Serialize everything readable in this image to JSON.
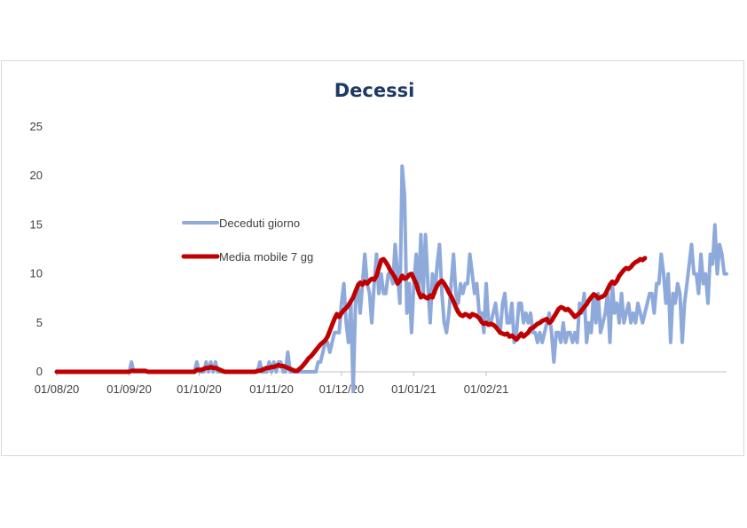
{
  "chart_data": {
    "type": "line",
    "title": "Decessi",
    "xlabel": "",
    "ylabel": "",
    "ylim": [
      0,
      25
    ],
    "yticks": [
      "0",
      "5",
      "10",
      "15",
      "20",
      "25"
    ],
    "xticks": [
      "01/08/20",
      "01/09/20",
      "01/10/20",
      "01/11/20",
      "01/12/20",
      "01/01/21",
      "01/02/21"
    ],
    "grid": false,
    "legend": "center-left",
    "series": [
      {
        "name": "Deceduti giorno",
        "color": "#8eaadb",
        "values": [
          0,
          0,
          0,
          0,
          0,
          0,
          0,
          0,
          0,
          0,
          0,
          0,
          0,
          0,
          0,
          0,
          0,
          0,
          0,
          0,
          0,
          0,
          0,
          0,
          0,
          0,
          0,
          0,
          0,
          0,
          0,
          0,
          1,
          0,
          0,
          0,
          0,
          0,
          0,
          0,
          0,
          0,
          0,
          0,
          0,
          0,
          0,
          0,
          0,
          0,
          0,
          0,
          0,
          0,
          0,
          0,
          0,
          0,
          0,
          0,
          1,
          0,
          0,
          0,
          1,
          0,
          1,
          0,
          1,
          0,
          0,
          0,
          0,
          0,
          0,
          0,
          0,
          0,
          0,
          0,
          0,
          0,
          0,
          0,
          0,
          0,
          0,
          1,
          0,
          0,
          0,
          1,
          0,
          1,
          0,
          1,
          1,
          0,
          0,
          2,
          0,
          0,
          0,
          0,
          0,
          0,
          0,
          0,
          0,
          0,
          0,
          0,
          1,
          1,
          2,
          3,
          3,
          2,
          3,
          4,
          4,
          4,
          7,
          9,
          5,
          3,
          7,
          -2,
          7,
          9,
          6,
          9,
          12,
          9,
          8,
          5,
          9,
          12,
          8,
          10,
          8,
          8,
          10,
          10,
          9,
          13,
          10,
          7,
          21,
          18,
          6,
          9,
          4,
          9,
          12,
          8,
          14,
          8,
          14,
          9,
          5,
          10,
          8,
          11,
          13,
          8,
          5,
          4,
          6,
          9,
          12,
          8,
          7,
          9,
          8,
          9,
          9,
          12,
          10,
          8,
          9,
          6,
          6,
          4,
          9,
          5,
          5,
          6,
          7,
          5,
          4,
          7,
          8,
          5,
          5,
          7,
          3,
          4,
          7,
          7,
          5,
          6,
          5,
          6,
          4,
          4,
          3,
          4,
          3,
          4,
          5,
          6,
          4,
          1,
          4,
          4,
          3,
          5,
          3,
          4,
          4,
          3,
          4,
          3,
          7,
          6,
          8,
          3,
          5,
          4,
          8,
          5,
          8,
          4,
          5,
          6,
          8,
          3,
          9,
          6,
          7,
          5,
          8,
          5,
          6,
          7,
          5,
          6,
          5,
          7,
          6,
          5,
          6,
          7,
          8,
          8,
          6,
          9,
          9,
          12,
          10,
          7,
          10,
          3,
          8,
          7,
          9,
          8,
          3,
          7,
          9,
          11,
          13,
          10,
          10,
          8,
          12,
          9,
          10,
          7,
          12,
          11,
          15,
          10,
          13,
          12,
          10,
          10
        ]
      },
      {
        "name": "Media mobile 7 gg",
        "color": "#c00000",
        "values": [
          0,
          0,
          0,
          0,
          0,
          0,
          0,
          0,
          0,
          0,
          0,
          0,
          0,
          0,
          0,
          0,
          0,
          0,
          0,
          0,
          0,
          0,
          0,
          0,
          0,
          0,
          0,
          0,
          0,
          0,
          0,
          0,
          0.1,
          0.1,
          0.1,
          0.1,
          0.1,
          0.1,
          0.1,
          0,
          0,
          0,
          0,
          0,
          0,
          0,
          0,
          0,
          0,
          0,
          0,
          0,
          0,
          0,
          0,
          0,
          0,
          0,
          0,
          0,
          0.2,
          0.2,
          0.2,
          0.3,
          0.4,
          0.4,
          0.5,
          0.4,
          0.4,
          0.3,
          0.2,
          0.1,
          0,
          0,
          0,
          0,
          0,
          0,
          0,
          0,
          0,
          0,
          0,
          0,
          0,
          0,
          0.1,
          0.1,
          0.2,
          0.3,
          0.4,
          0.4,
          0.5,
          0.5,
          0.6,
          0.7,
          0.6,
          0.6,
          0.5,
          0.4,
          0.3,
          0.2,
          0.1,
          0.1,
          0.3,
          0.5,
          0.8,
          1.1,
          1.4,
          1.6,
          1.9,
          2.2,
          2.5,
          2.8,
          3.0,
          3.2,
          3.6,
          4.2,
          4.8,
          5.4,
          5.9,
          5.6,
          6.0,
          6.3,
          6.5,
          6.8,
          7.2,
          7.6,
          8.2,
          8.8,
          9.1,
          8.9,
          9.2,
          9.0,
          9.3,
          9.5,
          9.4,
          9.8,
          10.6,
          11.4,
          11.5,
          11.2,
          10.8,
          10.3,
          10.0,
          9.6,
          9.0,
          9.3,
          9.8,
          9.5,
          9.6,
          9.9,
          10.0,
          9.5,
          9.0,
          8.2,
          7.6,
          7.8,
          7.6,
          7.5,
          7.8,
          7.6,
          8.3,
          8.8,
          9.1,
          9.3,
          9.0,
          8.6,
          8.1,
          7.7,
          7.2,
          6.6,
          6.1,
          5.8,
          5.7,
          5.9,
          5.8,
          5.6,
          5.9,
          5.8,
          5.7,
          5.5,
          5.1,
          4.9,
          5.0,
          4.8,
          4.9,
          4.8,
          4.6,
          4.3,
          4.0,
          3.9,
          3.8,
          3.9,
          3.6,
          3.7,
          3.5,
          3.3,
          3.6,
          3.9,
          3.6,
          3.8,
          4.0,
          4.4,
          4.5,
          4.7,
          4.9,
          5.0,
          5.2,
          5.3,
          5.4,
          5.0,
          5.2,
          5.6,
          6.0,
          6.4,
          6.6,
          6.5,
          6.3,
          6.4,
          6.2,
          5.9,
          5.6,
          5.8,
          6.0,
          6.3,
          6.6,
          6.9,
          7.3,
          7.6,
          7.9,
          7.8,
          7.5,
          7.6,
          7.7,
          7.9,
          8.4,
          8.9,
          9.2,
          9.0,
          9.3,
          9.8,
          10.1,
          10.4,
          10.6,
          10.5,
          10.7,
          11.0,
          11.2,
          11.3,
          11.5,
          11.4,
          11.6
        ]
      }
    ]
  }
}
